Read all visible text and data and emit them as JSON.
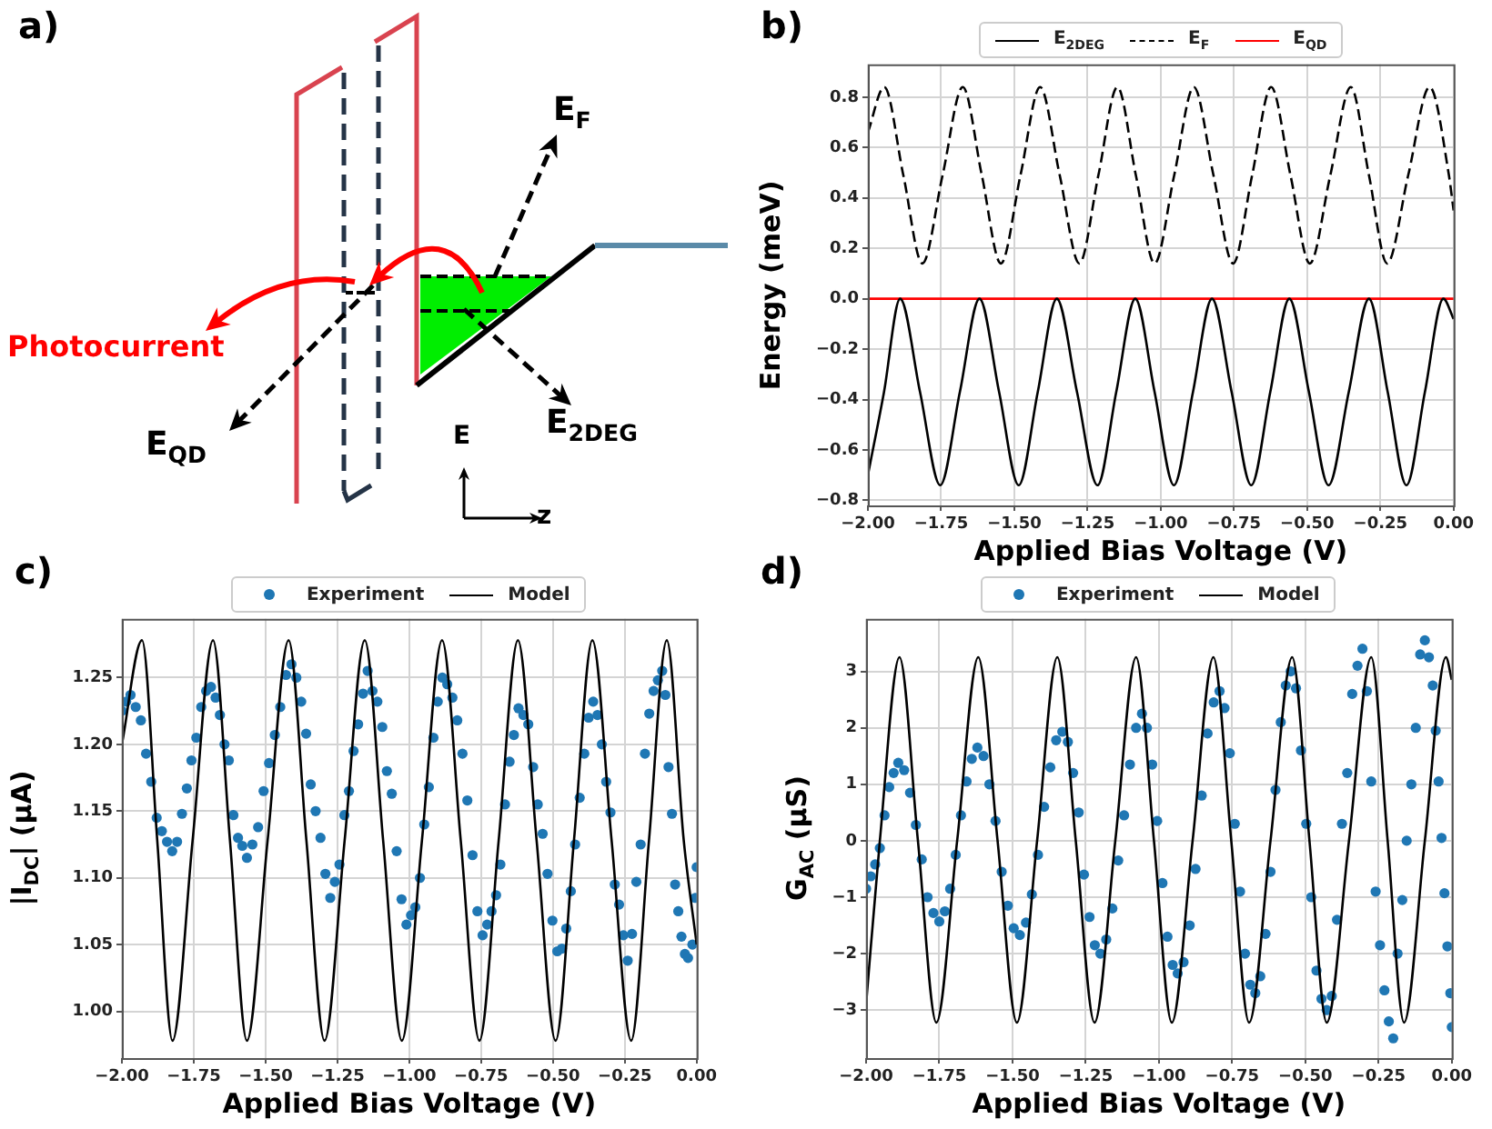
{
  "chart_data": [
    {
      "type": "other",
      "title": "a)",
      "annotations": [
        "Photocurrent",
        "E$_{QD}$",
        "E$_{F}$",
        "E$_{2DEG}$",
        "E",
        "z"
      ]
    },
    {
      "type": "line",
      "title": "b)",
      "xlabel": "Applied Bias Voltage (V)",
      "ylabel": "Energy (meV)",
      "xlim": [
        -2,
        0
      ],
      "ylim": [
        -0.82,
        0.93
      ],
      "xticks": [
        {
          "value": -2,
          "label": "−2.00"
        },
        {
          "value": -1.75,
          "label": "−1.75"
        },
        {
          "value": -1.5,
          "label": "−1.50"
        },
        {
          "value": -1.25,
          "label": "−1.25"
        },
        {
          "value": -1,
          "label": "−1.00"
        },
        {
          "value": -0.75,
          "label": "−0.75"
        },
        {
          "value": -0.5,
          "label": "−0.50"
        },
        {
          "value": -0.25,
          "label": "−0.25"
        },
        {
          "value": 0,
          "label": "0.00"
        }
      ],
      "yticks": [
        {
          "value": -0.8,
          "label": "−0.8"
        },
        {
          "value": -0.6,
          "label": "−0.6"
        },
        {
          "value": -0.4,
          "label": "−0.4"
        },
        {
          "value": -0.2,
          "label": "−0.2"
        },
        {
          "value": 0,
          "label": "0.0"
        },
        0.2,
        0.4,
        0.6,
        0.8
      ],
      "grid": true,
      "legend": "top",
      "marker": "none",
      "series": [
        {
          "name": "E$_{2DEG}$",
          "color": "#000000",
          "line_style": "solid",
          "x": [
            -2.0,
            -1.945,
            -1.89,
            -1.822,
            -1.753,
            -1.686,
            -1.619,
            -1.552,
            -1.485,
            -1.42,
            -1.355,
            -1.286,
            -1.216,
            -1.152,
            -1.087,
            -1.021,
            -0.955,
            -0.89,
            -0.825,
            -0.758,
            -0.691,
            -0.626,
            -0.561,
            -0.494,
            -0.427,
            -0.358,
            -0.289,
            -0.225,
            -0.161,
            -0.098,
            -0.035,
            0.0
          ],
          "values": [
            -0.7,
            -0.37,
            0,
            -0.37,
            -0.74,
            -0.37,
            0,
            -0.37,
            -0.74,
            -0.37,
            0,
            -0.37,
            -0.74,
            -0.37,
            0,
            -0.37,
            -0.74,
            -0.37,
            0,
            -0.37,
            -0.74,
            -0.37,
            0,
            -0.37,
            -0.74,
            -0.37,
            0,
            -0.37,
            -0.74,
            -0.37,
            0,
            -0.08
          ]
        },
        {
          "name": "E$_{F}$",
          "color": "#000000",
          "line_style": "dashed",
          "x": [
            -2.0,
            -1.944,
            -1.879,
            -1.814,
            -1.745,
            -1.676,
            -1.611,
            -1.546,
            -1.479,
            -1.412,
            -1.345,
            -1.278,
            -1.213,
            -1.148,
            -1.085,
            -1.021,
            -0.954,
            -0.887,
            -0.82,
            -0.753,
            -0.688,
            -0.623,
            -0.557,
            -0.491,
            -0.421,
            -0.351,
            -0.289,
            -0.227,
            -0.155,
            -0.082,
            -0.016,
            0.0
          ],
          "values": [
            0.66,
            0.84,
            0.49,
            0.14,
            0.49,
            0.84,
            0.49,
            0.14,
            0.49,
            0.84,
            0.49,
            0.14,
            0.49,
            0.84,
            0.49,
            0.14,
            0.49,
            0.84,
            0.49,
            0.14,
            0.49,
            0.84,
            0.49,
            0.14,
            0.49,
            0.84,
            0.49,
            0.14,
            0.49,
            0.84,
            0.49,
            0.35
          ]
        },
        {
          "name": "E$_{QD}$",
          "color": "#ff0000",
          "line_style": "solid",
          "x": [
            -2,
            0
          ],
          "values": [
            0,
            0
          ]
        }
      ]
    },
    {
      "type": "scatter",
      "title": "c)",
      "xlabel": "Applied Bias Voltage (V)",
      "ylabel": "|I$_{DC}$| (μA)",
      "xlim": [
        -2,
        0
      ],
      "ylim": [
        0.965,
        1.294
      ],
      "xticks": [
        {
          "value": -2,
          "label": "−2.00"
        },
        {
          "value": -1.75,
          "label": "−1.75"
        },
        {
          "value": -1.5,
          "label": "−1.50"
        },
        {
          "value": -1.25,
          "label": "−1.25"
        },
        {
          "value": -1,
          "label": "−1.00"
        },
        {
          "value": -0.75,
          "label": "−0.75"
        },
        {
          "value": -0.5,
          "label": "−0.50"
        },
        {
          "value": -0.25,
          "label": "−0.25"
        },
        {
          "value": 0,
          "label": "0.00"
        }
      ],
      "yticks": [
        {
          "value": 1,
          "label": "1.00"
        },
        1.05,
        {
          "value": 1.1,
          "label": "1.10"
        },
        1.15,
        {
          "value": 1.2,
          "label": "1.20"
        },
        1.25
      ],
      "grid": true,
      "legend": "top",
      "series": [
        {
          "name": "Experiment",
          "type": "scatter",
          "marker": "circle",
          "color": "#1f77b4",
          "x": [
            -2.0,
            -1.985,
            -1.97,
            -1.952,
            -1.934,
            -1.916,
            -1.898,
            -1.879,
            -1.861,
            -1.843,
            -1.825,
            -1.808,
            -1.791,
            -1.774,
            -1.758,
            -1.741,
            -1.724,
            -1.707,
            -1.69,
            -1.674,
            -1.659,
            -1.643,
            -1.628,
            -1.612,
            -1.596,
            -1.581,
            -1.565,
            -1.546,
            -1.526,
            -1.507,
            -1.488,
            -1.468,
            -1.449,
            -1.429,
            -1.41,
            -1.393,
            -1.376,
            -1.359,
            -1.343,
            -1.326,
            -1.309,
            -1.292,
            -1.275,
            -1.259,
            -1.243,
            -1.226,
            -1.21,
            -1.194,
            -1.178,
            -1.161,
            -1.145,
            -1.128,
            -1.111,
            -1.094,
            -1.078,
            -1.061,
            -1.044,
            -1.027,
            -1.01,
            -0.994,
            -0.979,
            -0.963,
            -0.948,
            -0.932,
            -0.916,
            -0.901,
            -0.885,
            -0.868,
            -0.85,
            -0.833,
            -0.815,
            -0.798,
            -0.78,
            -0.763,
            -0.745,
            -0.729,
            -0.714,
            -0.698,
            -0.683,
            -0.667,
            -0.651,
            -0.636,
            -0.62,
            -0.603,
            -0.586,
            -0.569,
            -0.553,
            -0.536,
            -0.519,
            -0.502,
            -0.485,
            -0.469,
            -0.454,
            -0.438,
            -0.423,
            -0.407,
            -0.391,
            -0.376,
            -0.36,
            -0.345,
            -0.33,
            -0.315,
            -0.3,
            -0.285,
            -0.27,
            -0.255,
            -0.24,
            -0.225,
            -0.21,
            -0.195,
            -0.18,
            -0.165,
            -0.15,
            -0.135,
            -0.12,
            -0.109,
            -0.098,
            -0.086,
            -0.075,
            -0.064,
            -0.053,
            -0.041,
            -0.03,
            -0.015,
            -0.005,
            0.0
          ],
          "values": [
            1.225,
            1.232,
            1.237,
            1.228,
            1.218,
            1.193,
            1.172,
            1.145,
            1.135,
            1.127,
            1.12,
            1.127,
            1.148,
            1.167,
            1.188,
            1.205,
            1.228,
            1.24,
            1.243,
            1.235,
            1.222,
            1.2,
            1.188,
            1.147,
            1.13,
            1.124,
            1.115,
            1.125,
            1.138,
            1.165,
            1.186,
            1.207,
            1.228,
            1.252,
            1.26,
            1.25,
            1.232,
            1.208,
            1.17,
            1.15,
            1.13,
            1.103,
            1.085,
            1.097,
            1.11,
            1.147,
            1.165,
            1.195,
            1.215,
            1.238,
            1.255,
            1.24,
            1.232,
            1.213,
            1.18,
            1.163,
            1.12,
            1.084,
            1.065,
            1.072,
            1.078,
            1.1,
            1.14,
            1.168,
            1.205,
            1.232,
            1.25,
            1.245,
            1.235,
            1.218,
            1.193,
            1.158,
            1.117,
            1.075,
            1.057,
            1.065,
            1.075,
            1.087,
            1.11,
            1.155,
            1.187,
            1.207,
            1.227,
            1.222,
            1.215,
            1.183,
            1.155,
            1.133,
            1.103,
            1.068,
            1.045,
            1.047,
            1.062,
            1.09,
            1.125,
            1.16,
            1.193,
            1.22,
            1.232,
            1.222,
            1.2,
            1.172,
            1.149,
            1.095,
            1.08,
            1.057,
            1.038,
            1.058,
            1.097,
            1.125,
            1.193,
            1.223,
            1.24,
            1.248,
            1.255,
            1.237,
            1.183,
            1.148,
            1.095,
            1.075,
            1.056,
            1.043,
            1.04,
            1.05,
            1.085,
            1.108
          ]
        },
        {
          "name": "Model",
          "type": "line",
          "marker": "none",
          "line_style": "solid",
          "color": "#000000",
          "x": [
            -2.0,
            -1.93,
            -1.877,
            -1.824,
            -1.754,
            -1.683,
            -1.624,
            -1.565,
            -1.493,
            -1.42,
            -1.358,
            -1.295,
            -1.225,
            -1.155,
            -1.091,
            -1.026,
            -0.956,
            -0.886,
            -0.821,
            -0.756,
            -0.689,
            -0.622,
            -0.557,
            -0.491,
            -0.427,
            -0.363,
            -0.296,
            -0.228,
            -0.166,
            -0.104,
            -0.045,
            0.0
          ],
          "values": [
            1.2,
            1.278,
            1.128,
            0.978,
            1.128,
            1.278,
            1.128,
            0.978,
            1.128,
            1.278,
            1.128,
            0.978,
            1.128,
            1.278,
            1.128,
            0.978,
            1.128,
            1.278,
            1.128,
            0.978,
            1.128,
            1.278,
            1.128,
            0.978,
            1.128,
            1.278,
            1.128,
            0.978,
            1.128,
            1.278,
            1.128,
            1.05
          ]
        }
      ]
    },
    {
      "type": "scatter",
      "title": "d)",
      "xlabel": "Applied Bias Voltage (V)",
      "ylabel": "G$_{AC}$ (μS)",
      "xlim": [
        -2,
        0
      ],
      "ylim": [
        -3.85,
        3.93
      ],
      "xticks": [
        {
          "value": -2,
          "label": "−2.00"
        },
        {
          "value": -1.75,
          "label": "−1.75"
        },
        {
          "value": -1.5,
          "label": "−1.50"
        },
        {
          "value": -1.25,
          "label": "−1.25"
        },
        {
          "value": -1,
          "label": "−1.00"
        },
        {
          "value": -0.75,
          "label": "−0.75"
        },
        {
          "value": -0.5,
          "label": "−0.50"
        },
        {
          "value": -0.25,
          "label": "−0.25"
        },
        {
          "value": 0,
          "label": "0.00"
        }
      ],
      "yticks": [
        {
          "value": -3,
          "label": "−3"
        },
        {
          "value": -2,
          "label": "−2"
        },
        {
          "value": -1,
          "label": "−1"
        },
        0,
        1,
        2,
        3
      ],
      "grid": true,
      "legend": "top",
      "series": [
        {
          "name": "Experiment",
          "type": "scatter",
          "marker": "circle",
          "color": "#1f77b4",
          "x": [
            -2.0,
            -1.984,
            -1.969,
            -1.953,
            -1.937,
            -1.921,
            -1.906,
            -1.89,
            -1.87,
            -1.85,
            -1.83,
            -1.81,
            -1.79,
            -1.77,
            -1.75,
            -1.731,
            -1.713,
            -1.694,
            -1.676,
            -1.657,
            -1.639,
            -1.62,
            -1.599,
            -1.579,
            -1.558,
            -1.537,
            -1.516,
            -1.496,
            -1.475,
            -1.454,
            -1.434,
            -1.413,
            -1.392,
            -1.371,
            -1.351,
            -1.33,
            -1.311,
            -1.293,
            -1.274,
            -1.256,
            -1.237,
            -1.219,
            -1.2,
            -1.18,
            -1.159,
            -1.139,
            -1.119,
            -1.099,
            -1.078,
            -1.058,
            -1.041,
            -1.023,
            -1.006,
            -0.988,
            -0.971,
            -0.953,
            -0.936,
            -0.916,
            -0.895,
            -0.875,
            -0.854,
            -0.834,
            -0.813,
            -0.793,
            -0.776,
            -0.758,
            -0.741,
            -0.723,
            -0.706,
            -0.688,
            -0.671,
            -0.654,
            -0.636,
            -0.619,
            -0.602,
            -0.584,
            -0.567,
            -0.55,
            -0.532,
            -0.515,
            -0.497,
            -0.48,
            -0.462,
            -0.445,
            -0.427,
            -0.41,
            -0.392,
            -0.375,
            -0.357,
            -0.34,
            -0.322,
            -0.305,
            -0.29,
            -0.275,
            -0.26,
            -0.245,
            -0.23,
            -0.215,
            -0.2,
            -0.185,
            -0.169,
            -0.154,
            -0.138,
            -0.123,
            -0.108,
            -0.092,
            -0.078,
            -0.065,
            -0.055,
            -0.045,
            -0.035,
            -0.025,
            -0.015,
            -0.005,
            0.0
          ],
          "values": [
            -0.85,
            -0.63,
            -0.42,
            -0.13,
            0.45,
            0.95,
            1.2,
            1.38,
            1.25,
            0.85,
            0.28,
            -0.33,
            -1.0,
            -1.28,
            -1.43,
            -1.25,
            -0.85,
            -0.25,
            0.45,
            1.05,
            1.45,
            1.65,
            1.5,
            1.0,
            0.35,
            -0.55,
            -1.15,
            -1.55,
            -1.67,
            -1.45,
            -0.95,
            -0.25,
            0.6,
            1.3,
            1.78,
            1.93,
            1.75,
            1.2,
            0.5,
            -0.6,
            -1.35,
            -1.85,
            -2.0,
            -1.75,
            -1.2,
            -0.35,
            0.45,
            1.35,
            2.0,
            2.25,
            2.0,
            1.35,
            0.35,
            -0.75,
            -1.7,
            -2.2,
            -2.35,
            -2.15,
            -1.5,
            -0.5,
            0.8,
            1.9,
            2.45,
            2.65,
            2.35,
            1.55,
            0.3,
            -0.9,
            -2.0,
            -2.55,
            -2.7,
            -2.4,
            -1.65,
            -0.55,
            0.9,
            2.1,
            2.75,
            3.0,
            2.7,
            1.6,
            0.3,
            -1.0,
            -2.3,
            -2.8,
            -3.0,
            -2.75,
            -1.4,
            0.3,
            1.2,
            2.6,
            3.1,
            3.4,
            2.65,
            1.05,
            -0.9,
            -1.85,
            -2.65,
            -3.2,
            -3.5,
            -2.0,
            -1.05,
            0.0,
            1.0,
            2.0,
            3.3,
            3.55,
            3.25,
            2.75,
            1.95,
            1.05,
            0.05,
            -0.93,
            -1.87,
            -2.7,
            -3.3
          ]
        },
        {
          "name": "Model",
          "type": "line",
          "marker": "none",
          "line_style": "solid",
          "color": "#000000",
          "x": [
            -2.0,
            -1.953,
            -1.886,
            -1.823,
            -1.76,
            -1.689,
            -1.617,
            -1.551,
            -1.485,
            -1.416,
            -1.347,
            -1.284,
            -1.22,
            -1.149,
            -1.078,
            -1.017,
            -0.956,
            -0.885,
            -0.814,
            -0.753,
            -0.692,
            -0.619,
            -0.545,
            -0.486,
            -0.427,
            -0.351,
            -0.275,
            -0.219,
            -0.163,
            -0.092,
            -0.02,
            0.0
          ],
          "values": [
            -2.9,
            0,
            3.25,
            0,
            -3.22,
            0,
            3.25,
            0,
            -3.22,
            0,
            3.25,
            0,
            -3.22,
            0,
            3.25,
            0,
            -3.22,
            0,
            3.25,
            0,
            -3.22,
            0,
            3.25,
            0,
            -3.22,
            0,
            3.25,
            0,
            -3.22,
            0,
            3.25,
            2.85
          ]
        }
      ]
    }
  ]
}
